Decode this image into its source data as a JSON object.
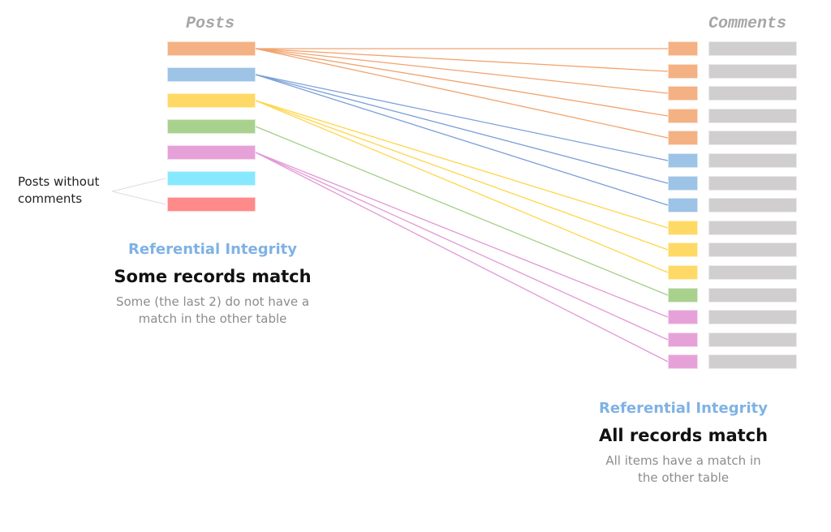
{
  "posts_table": {
    "title": "Posts",
    "rows": [
      {
        "id": "post-1",
        "color": "#F4B183",
        "line_color": "#F2A36E"
      },
      {
        "id": "post-2",
        "color": "#9DC3E6",
        "line_color": "#7B9FDA"
      },
      {
        "id": "post-3",
        "color": "#FFD966",
        "line_color": "#FFD548"
      },
      {
        "id": "post-4",
        "color": "#A9D18E",
        "line_color": "#A3CE86"
      },
      {
        "id": "post-5",
        "color": "#E6A2D8",
        "line_color": "#E29AD5"
      },
      {
        "id": "post-6",
        "color": "#87E8FF",
        "line_color": null
      },
      {
        "id": "post-7",
        "color": "#FF8A8A",
        "line_color": null
      }
    ]
  },
  "comments_table": {
    "title": "Comments",
    "row_fill_color": "#D0CECE",
    "rows": [
      {
        "post_index": 0
      },
      {
        "post_index": 0
      },
      {
        "post_index": 0
      },
      {
        "post_index": 0
      },
      {
        "post_index": 0
      },
      {
        "post_index": 1
      },
      {
        "post_index": 1
      },
      {
        "post_index": 1
      },
      {
        "post_index": 2
      },
      {
        "post_index": 2
      },
      {
        "post_index": 2
      },
      {
        "post_index": 3
      },
      {
        "post_index": 4
      },
      {
        "post_index": 4
      },
      {
        "post_index": 4
      }
    ]
  },
  "annotation": {
    "text_line1": "Posts without",
    "text_line2": "comments",
    "line_color": "#dddddd"
  },
  "left_caption": {
    "kicker": "Referential Integrity",
    "title": "Some records match",
    "desc_line1": "Some (the last 2) do not have a",
    "desc_line2": "match in the other table"
  },
  "right_caption": {
    "kicker": "Referential Integrity",
    "title": "All records match",
    "desc_line1": "All items have a match in",
    "desc_line2": "the other table"
  }
}
